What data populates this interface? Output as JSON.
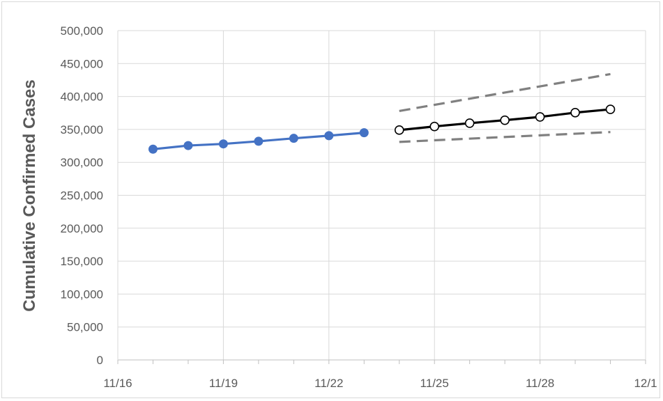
{
  "chart_data": {
    "type": "line",
    "title": "",
    "xlabel": "",
    "ylabel": "Cumulative Confirmed Cases",
    "x_ticks": [
      "11/16",
      "11/19",
      "11/22",
      "11/25",
      "11/28",
      "12/1"
    ],
    "y_ticks": [
      "0",
      "50,000",
      "100,000",
      "150,000",
      "200,000",
      "250,000",
      "300,000",
      "350,000",
      "400,000",
      "450,000",
      "500,000"
    ],
    "xlim": [
      "2020-11-16",
      "2020-12-01"
    ],
    "ylim": [
      0,
      500000
    ],
    "grid": true,
    "legend": "none",
    "series": [
      {
        "style": "observed",
        "color": "#4472c4",
        "marker": "filled-circle",
        "dash": "solid",
        "points": [
          {
            "x": "2020-11-17",
            "y": 320000
          },
          {
            "x": "2020-11-18",
            "y": 325500
          },
          {
            "x": "2020-11-19",
            "y": 328000
          },
          {
            "x": "2020-11-20",
            "y": 332000
          },
          {
            "x": "2020-11-21",
            "y": 336500
          },
          {
            "x": "2020-11-22",
            "y": 340500
          },
          {
            "x": "2020-11-23",
            "y": 345000
          }
        ]
      },
      {
        "style": "forecast",
        "color": "#000000",
        "marker": "open-circle",
        "dash": "solid",
        "points": [
          {
            "x": "2020-11-24",
            "y": 349000
          },
          {
            "x": "2020-11-25",
            "y": 354500
          },
          {
            "x": "2020-11-26",
            "y": 359500
          },
          {
            "x": "2020-11-27",
            "y": 364000
          },
          {
            "x": "2020-11-28",
            "y": 369000
          },
          {
            "x": "2020-11-29",
            "y": 375500
          },
          {
            "x": "2020-11-30",
            "y": 380500
          }
        ]
      },
      {
        "style": "upper-bound",
        "color": "#808080",
        "marker": "none",
        "dash": "dashed",
        "points": [
          {
            "x": "2020-11-24",
            "y": 378000
          },
          {
            "x": "2020-11-30",
            "y": 434000
          }
        ]
      },
      {
        "style": "lower-bound",
        "color": "#808080",
        "marker": "none",
        "dash": "dashed",
        "points": [
          {
            "x": "2020-11-24",
            "y": 331000
          },
          {
            "x": "2020-11-30",
            "y": 346000
          }
        ]
      }
    ]
  }
}
